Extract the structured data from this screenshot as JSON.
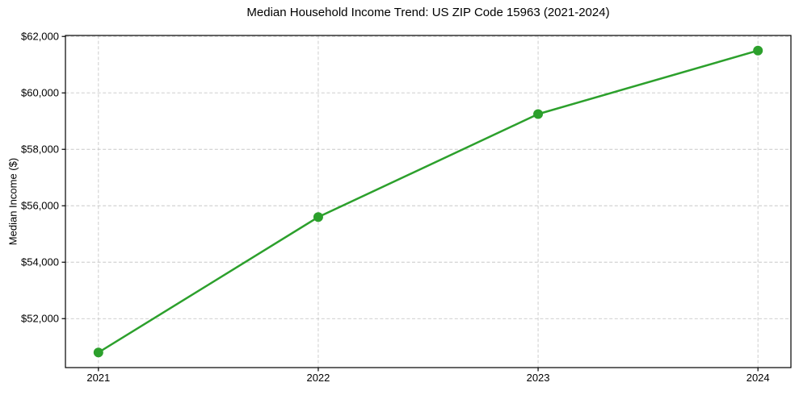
{
  "chart_data": {
    "type": "line",
    "title": "Median Household Income Trend: US ZIP Code 15963 (2021-2024)",
    "xlabel": "",
    "ylabel": "Median Income ($)",
    "categories": [
      2021,
      2022,
      2023,
      2024
    ],
    "series": [
      {
        "name": "Median household income",
        "values": [
          50800,
          55600,
          59250,
          61500
        ]
      }
    ],
    "xtick_labels": [
      "2021",
      "2022",
      "2023",
      "2024"
    ],
    "yticks": [
      52000,
      54000,
      56000,
      58000,
      60000,
      62000
    ],
    "ytick_labels": [
      "$52,000",
      "$54,000",
      "$56,000",
      "$58,000",
      "$60,000",
      "$62,000"
    ],
    "xlim": [
      2020.85,
      2024.15
    ],
    "ylim": [
      50265,
      62035
    ],
    "grid": "dashed",
    "grid_color": "#c8c8c8",
    "line_color": "#2ca02c",
    "marker_color": "#2ca02c",
    "marker": "circle",
    "legend_position": "none",
    "background_color": "#ffffff",
    "border_color": "#000000"
  }
}
